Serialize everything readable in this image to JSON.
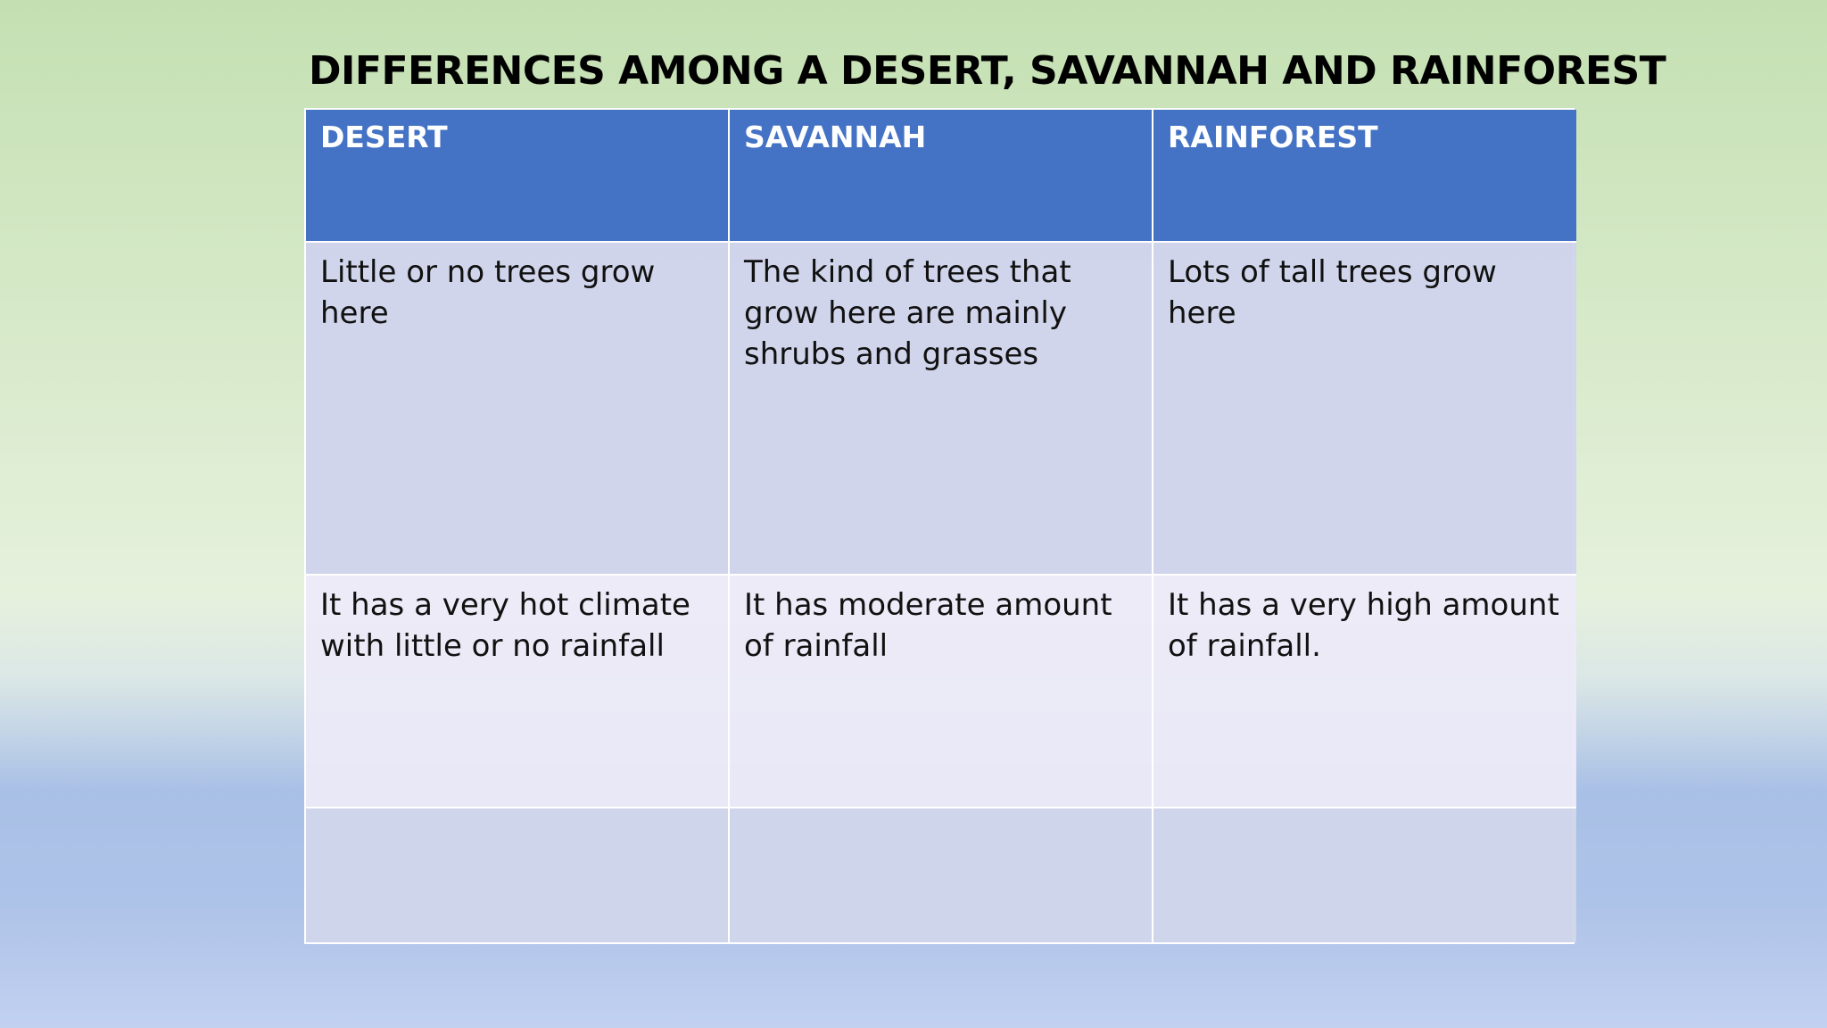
{
  "title": "DIFFERENCES AMONG A DESERT, SAVANNAH AND RAINFOREST",
  "table": {
    "header": [
      "DESERT",
      "SAVANNAH",
      "RAINFOREST"
    ],
    "rows": [
      [
        "Little or no trees grow here",
        "The kind of trees that grow here are mainly shrubs and grasses",
        "Lots of tall trees grow here"
      ],
      [
        "It has a very hot climate with little or no rainfall",
        "It has moderate amount of rainfall",
        "It has a very high amount of rainfall."
      ]
    ]
  }
}
